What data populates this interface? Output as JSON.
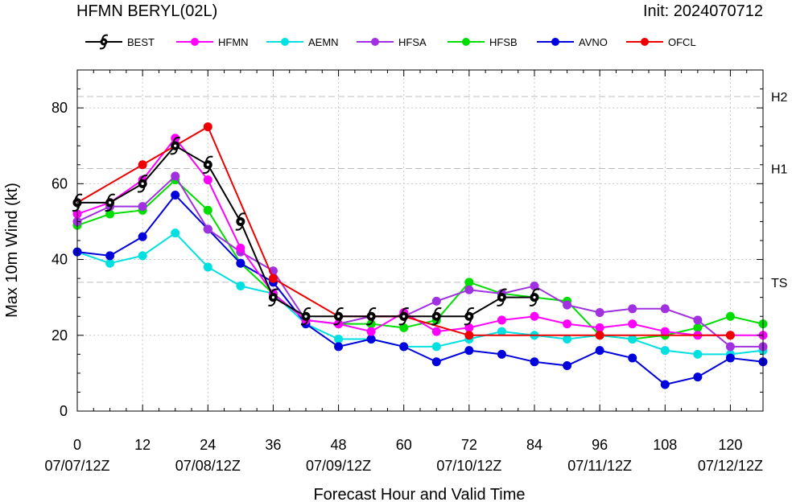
{
  "header": {
    "title": "HFMN BERYL(02L)",
    "init": "Init: 2024070712"
  },
  "chart_data": {
    "type": "line",
    "xlabel": "Forecast Hour and Valid Time",
    "ylabel": "Max 10m Wind (kt)",
    "xlim": [
      0,
      126
    ],
    "ylim": [
      0,
      90
    ],
    "grid": true,
    "legend_placement": "top",
    "x_ticks": [
      0,
      12,
      24,
      36,
      48,
      60,
      72,
      84,
      96,
      108,
      120
    ],
    "x_tick_labels": [
      "0",
      "12",
      "24",
      "36",
      "48",
      "60",
      "72",
      "84",
      "96",
      "108",
      "120"
    ],
    "date_ticks": [
      {
        "x": 0,
        "label": "07/07/12Z"
      },
      {
        "x": 24,
        "label": "07/08/12Z"
      },
      {
        "x": 48,
        "label": "07/09/12Z"
      },
      {
        "x": 72,
        "label": "07/10/12Z"
      },
      {
        "x": 96,
        "label": "07/11/12Z"
      },
      {
        "x": 120,
        "label": "07/12/12Z"
      }
    ],
    "y_ticks": [
      0,
      20,
      40,
      60,
      80
    ],
    "y_tick_labels": [
      "0",
      "20",
      "40",
      "60",
      "80"
    ],
    "reference_lines": [
      {
        "value": 34,
        "label": "TS"
      },
      {
        "value": 64,
        "label": "H1"
      },
      {
        "value": 83,
        "label": "H2"
      }
    ],
    "series": [
      {
        "name": "BEST",
        "color": "#000000",
        "marker": "hurricane-symbol",
        "x": [
          0,
          6,
          12,
          18,
          24,
          30,
          36,
          42,
          48,
          54,
          60,
          66,
          72,
          78,
          84
        ],
        "y": [
          55,
          55,
          60,
          70,
          65,
          50,
          30,
          25,
          25,
          25,
          25,
          25,
          25,
          30,
          30
        ]
      },
      {
        "name": "HFMN",
        "color": "#ff00ff",
        "marker": "dot",
        "x": [
          0,
          6,
          12,
          18,
          24,
          30,
          36,
          42,
          48,
          54,
          60,
          66,
          72,
          78,
          84,
          90,
          96,
          102,
          108,
          114,
          120,
          126
        ],
        "y": [
          52,
          55,
          61,
          72,
          61,
          43,
          31,
          24,
          23,
          21,
          26,
          21,
          22,
          24,
          25,
          23,
          22,
          23,
          21,
          20,
          20,
          20
        ]
      },
      {
        "name": "AEMN",
        "color": "#00e0e0",
        "marker": "dot",
        "x": [
          0,
          6,
          12,
          18,
          24,
          30,
          36,
          42,
          48,
          54,
          60,
          66,
          72,
          78,
          84,
          90,
          96,
          102,
          108,
          114,
          120,
          126
        ],
        "y": [
          42,
          39,
          41,
          47,
          38,
          33,
          31,
          23,
          19,
          19,
          17,
          17,
          19,
          21,
          20,
          19,
          20,
          19,
          16,
          15,
          15,
          16
        ]
      },
      {
        "name": "HFSA",
        "color": "#a030e0",
        "marker": "dot",
        "x": [
          0,
          6,
          12,
          18,
          24,
          30,
          36,
          42,
          48,
          54,
          60,
          66,
          72,
          78,
          84,
          90,
          96,
          102,
          108,
          114,
          120,
          126
        ],
        "y": [
          50,
          54,
          54,
          62,
          48,
          42,
          37,
          24,
          23,
          25,
          25,
          29,
          32,
          31,
          33,
          28,
          26,
          27,
          27,
          24,
          17,
          17
        ]
      },
      {
        "name": "HFSB",
        "color": "#00dd00",
        "marker": "dot",
        "x": [
          0,
          6,
          12,
          18,
          24,
          30,
          36,
          42,
          48,
          54,
          60,
          66,
          72,
          78,
          84,
          90,
          96,
          102,
          108,
          114,
          120,
          126
        ],
        "y": [
          49,
          52,
          53,
          61,
          53,
          39,
          31,
          24,
          23,
          23,
          22,
          24,
          34,
          31,
          30,
          29,
          20,
          19,
          20,
          22,
          25,
          23
        ]
      },
      {
        "name": "AVNO",
        "color": "#0000dd",
        "marker": "dot",
        "x": [
          0,
          6,
          12,
          18,
          24,
          30,
          36,
          42,
          48,
          54,
          60,
          66,
          72,
          78,
          84,
          90,
          96,
          102,
          108,
          114,
          120,
          126
        ],
        "y": [
          42,
          41,
          46,
          57,
          48,
          39,
          34,
          23,
          17,
          19,
          17,
          13,
          16,
          15,
          13,
          12,
          16,
          14,
          7,
          9,
          14,
          13
        ]
      },
      {
        "name": "OFCL",
        "color": "#ee0000",
        "marker": "dot",
        "x": [
          0,
          12,
          24,
          36,
          48,
          60,
          72,
          96,
          120
        ],
        "y": [
          55,
          65,
          75,
          35,
          25,
          25,
          20,
          20,
          20
        ]
      }
    ]
  }
}
